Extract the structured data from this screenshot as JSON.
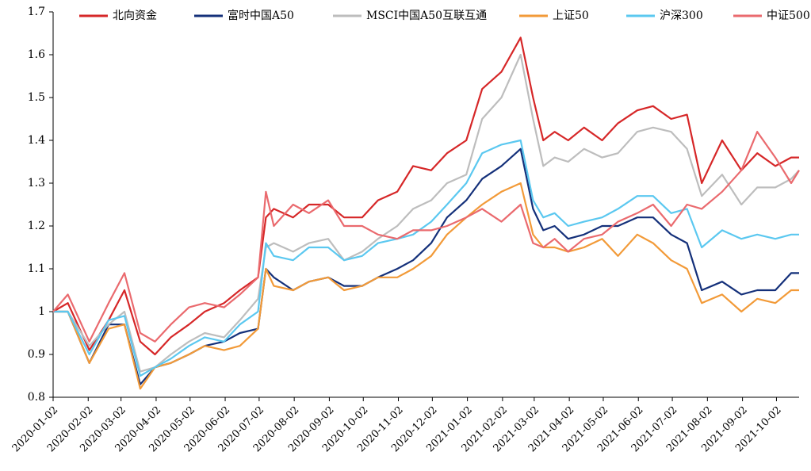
{
  "chart_data": {
    "type": "line",
    "x": [
      "2020-01-02",
      "2020-01-15",
      "2020-02-03",
      "2020-02-20",
      "2020-03-05",
      "2020-03-19",
      "2020-04-01",
      "2020-04-15",
      "2020-05-01",
      "2020-05-15",
      "2020-06-01",
      "2020-06-15",
      "2020-07-01",
      "2020-07-08",
      "2020-07-15",
      "2020-08-01",
      "2020-08-15",
      "2020-09-01",
      "2020-09-15",
      "2020-10-01",
      "2020-10-15",
      "2020-11-01",
      "2020-11-15",
      "2020-12-01",
      "2020-12-15",
      "2021-01-01",
      "2021-01-15",
      "2021-02-01",
      "2021-02-18",
      "2021-03-01",
      "2021-03-10",
      "2021-03-20",
      "2021-04-01",
      "2021-04-15",
      "2021-05-01",
      "2021-05-15",
      "2021-06-01",
      "2021-06-15",
      "2021-07-01",
      "2021-07-15",
      "2021-07-28",
      "2021-08-15",
      "2021-09-01",
      "2021-09-15",
      "2021-10-01",
      "2021-10-15",
      "2021-10-22"
    ],
    "series": [
      {
        "name": "北向资金",
        "color": "#d62728",
        "values": [
          1.0,
          1.02,
          0.91,
          0.98,
          1.05,
          0.93,
          0.9,
          0.94,
          0.97,
          1.0,
          1.02,
          1.05,
          1.08,
          1.22,
          1.24,
          1.22,
          1.25,
          1.25,
          1.22,
          1.22,
          1.26,
          1.28,
          1.34,
          1.33,
          1.37,
          1.4,
          1.52,
          1.56,
          1.64,
          1.5,
          1.4,
          1.42,
          1.4,
          1.43,
          1.4,
          1.44,
          1.47,
          1.48,
          1.45,
          1.46,
          1.3,
          1.4,
          1.33,
          1.37,
          1.34,
          1.36,
          1.36
        ]
      },
      {
        "name": "富时中国A50",
        "color": "#14307a",
        "values": [
          1.0,
          1.0,
          0.88,
          0.97,
          0.97,
          0.83,
          0.87,
          0.88,
          0.9,
          0.92,
          0.93,
          0.95,
          0.96,
          1.1,
          1.08,
          1.05,
          1.07,
          1.08,
          1.06,
          1.06,
          1.08,
          1.1,
          1.12,
          1.16,
          1.22,
          1.26,
          1.31,
          1.34,
          1.38,
          1.24,
          1.19,
          1.2,
          1.17,
          1.18,
          1.2,
          1.2,
          1.22,
          1.22,
          1.18,
          1.16,
          1.05,
          1.07,
          1.04,
          1.05,
          1.05,
          1.09,
          1.09
        ]
      },
      {
        "name": "MSCI中国A50互联互通",
        "color": "#bdbdbd",
        "values": [
          1.0,
          1.0,
          0.92,
          0.97,
          1.0,
          0.86,
          0.87,
          0.9,
          0.93,
          0.95,
          0.94,
          0.98,
          1.03,
          1.15,
          1.16,
          1.14,
          1.16,
          1.17,
          1.12,
          1.14,
          1.17,
          1.2,
          1.24,
          1.26,
          1.3,
          1.32,
          1.45,
          1.5,
          1.6,
          1.45,
          1.34,
          1.36,
          1.35,
          1.38,
          1.36,
          1.37,
          1.42,
          1.43,
          1.42,
          1.38,
          1.27,
          1.32,
          1.25,
          1.29,
          1.29,
          1.31,
          1.33
        ]
      },
      {
        "name": "上证50",
        "color": "#f29a38",
        "values": [
          1.0,
          1.0,
          0.88,
          0.96,
          0.97,
          0.82,
          0.87,
          0.88,
          0.9,
          0.92,
          0.91,
          0.92,
          0.96,
          1.1,
          1.06,
          1.05,
          1.07,
          1.08,
          1.05,
          1.06,
          1.08,
          1.08,
          1.1,
          1.13,
          1.18,
          1.22,
          1.25,
          1.28,
          1.3,
          1.18,
          1.15,
          1.15,
          1.14,
          1.15,
          1.17,
          1.13,
          1.18,
          1.16,
          1.12,
          1.1,
          1.02,
          1.04,
          1.0,
          1.03,
          1.02,
          1.05,
          1.05
        ]
      },
      {
        "name": "沪深300",
        "color": "#5bc8f0",
        "values": [
          1.0,
          1.0,
          0.9,
          0.98,
          0.99,
          0.85,
          0.87,
          0.89,
          0.92,
          0.94,
          0.93,
          0.97,
          1.0,
          1.16,
          1.13,
          1.12,
          1.15,
          1.15,
          1.12,
          1.13,
          1.16,
          1.17,
          1.18,
          1.21,
          1.25,
          1.3,
          1.37,
          1.39,
          1.4,
          1.26,
          1.22,
          1.23,
          1.2,
          1.21,
          1.22,
          1.24,
          1.27,
          1.27,
          1.23,
          1.24,
          1.15,
          1.19,
          1.17,
          1.18,
          1.17,
          1.18,
          1.18
        ]
      },
      {
        "name": "中证500",
        "color": "#ea6a6e",
        "values": [
          1.0,
          1.04,
          0.93,
          1.02,
          1.09,
          0.95,
          0.93,
          0.97,
          1.01,
          1.02,
          1.01,
          1.04,
          1.08,
          1.28,
          1.2,
          1.25,
          1.23,
          1.26,
          1.2,
          1.2,
          1.18,
          1.17,
          1.19,
          1.19,
          1.2,
          1.22,
          1.24,
          1.21,
          1.25,
          1.16,
          1.15,
          1.17,
          1.14,
          1.17,
          1.18,
          1.21,
          1.23,
          1.25,
          1.2,
          1.25,
          1.24,
          1.28,
          1.33,
          1.42,
          1.36,
          1.3,
          1.33
        ]
      }
    ],
    "xlim": [
      "2020-01-02",
      "2021-10-22"
    ],
    "xticks": [
      "2020-01-02",
      "2020-02-02",
      "2020-03-02",
      "2020-04-02",
      "2020-05-02",
      "2020-06-02",
      "2020-07-02",
      "2020-08-02",
      "2020-09-02",
      "2020-10-02",
      "2020-11-02",
      "2020-12-02",
      "2021-01-02",
      "2021-02-02",
      "2021-03-02",
      "2021-04-02",
      "2021-05-02",
      "2021-06-02",
      "2021-07-02",
      "2021-08-02",
      "2021-09-02",
      "2021-10-02"
    ],
    "ylim": [
      0.8,
      1.7
    ],
    "yticks": [
      0.8,
      0.9,
      1,
      1.1,
      1.2,
      1.3,
      1.4,
      1.5,
      1.6,
      1.7
    ],
    "legend": "top"
  }
}
